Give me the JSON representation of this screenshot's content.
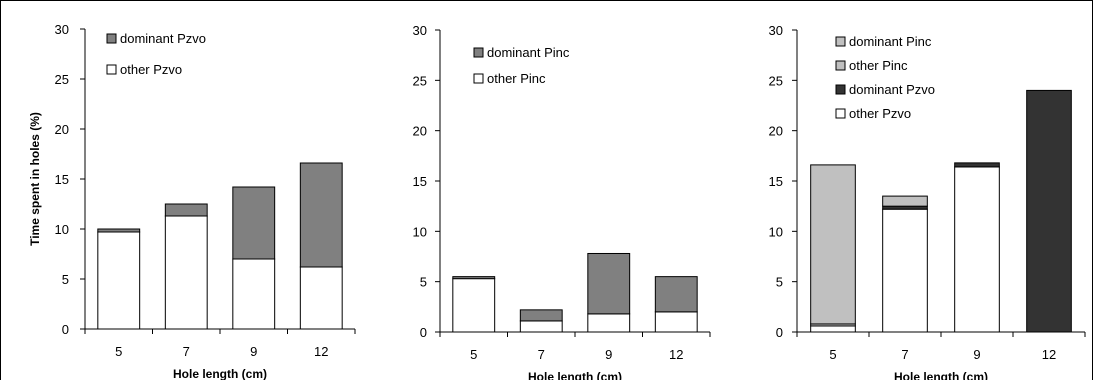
{
  "chart_data": [
    {
      "type": "bar",
      "stacked": true,
      "ylabel": "Time spent in holes (%)",
      "xlabel": "Hole length (cm)",
      "categories": [
        "5",
        "7",
        "9",
        "12"
      ],
      "ylim": [
        0,
        30
      ],
      "yticks": [
        0,
        5,
        10,
        15,
        20,
        25,
        30
      ],
      "legend_position": "top-left",
      "series": [
        {
          "name": "other Pzvo",
          "color": "#ffffff",
          "values": [
            9.7,
            11.3,
            7.0,
            6.2
          ]
        },
        {
          "name": "dominant Pzvo",
          "color": "#808080",
          "values": [
            0.3,
            1.2,
            7.2,
            10.4
          ]
        }
      ],
      "legend_order": [
        "dominant Pzvo",
        "other Pzvo"
      ]
    },
    {
      "type": "bar",
      "stacked": true,
      "ylabel": "",
      "xlabel": "Hole length (cm)",
      "categories": [
        "5",
        "7",
        "9",
        "12"
      ],
      "ylim": [
        0,
        30
      ],
      "yticks": [
        0,
        5,
        10,
        15,
        20,
        25,
        30
      ],
      "legend_position": "top-left",
      "series": [
        {
          "name": "other Pinc",
          "color": "#ffffff",
          "values": [
            5.3,
            1.1,
            1.8,
            2.0
          ]
        },
        {
          "name": "dominant Pinc",
          "color": "#808080",
          "values": [
            0.2,
            1.1,
            6.0,
            3.5
          ]
        }
      ],
      "legend_order": [
        "dominant Pinc",
        "other Pinc"
      ]
    },
    {
      "type": "bar",
      "stacked": true,
      "ylabel": "",
      "xlabel": "Hole length (cm)",
      "categories": [
        "5",
        "7",
        "9",
        "12"
      ],
      "ylim": [
        0,
        30
      ],
      "yticks": [
        0,
        5,
        10,
        15,
        20,
        25,
        30
      ],
      "legend_position": "top-left",
      "series": [
        {
          "name": "other Pzvo",
          "color": "#ffffff",
          "values": [
            0.6,
            12.2,
            16.4,
            0.0
          ]
        },
        {
          "name": "dominant Pzvo",
          "color": "#333333",
          "values": [
            0.0,
            0.3,
            0.4,
            24.0
          ]
        },
        {
          "name": "other Pinc",
          "color": "#c0c0c0",
          "values": [
            0.2,
            1.0,
            0.0,
            0.0
          ]
        },
        {
          "name": "dominant Pinc",
          "color": "#c0c0c0",
          "values": [
            15.8,
            0.0,
            0.0,
            0.0
          ]
        }
      ],
      "legend_order": [
        "dominant Pinc",
        "other Pinc",
        "dominant Pzvo",
        "other Pzvo"
      ]
    }
  ]
}
